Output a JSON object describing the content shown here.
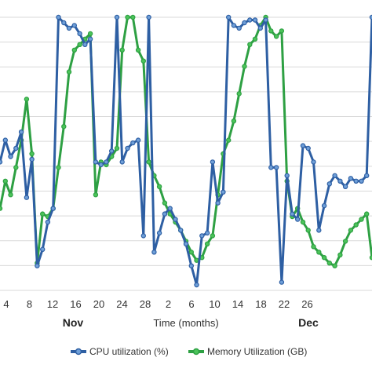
{
  "chart_data": {
    "type": "line",
    "xlabel": "Time (months)",
    "ylabel": "",
    "title": "",
    "x_ticks": [
      "4",
      "8",
      "12",
      "16",
      "20",
      "24",
      "28",
      "2",
      "6",
      "10",
      "14",
      "18",
      "22",
      "26"
    ],
    "month_labels": [
      "Nov",
      "Dec"
    ],
    "ylim": [
      0,
      100
    ],
    "grid": true,
    "legend_position": "bottom",
    "series": [
      {
        "name": "CPU utilization (%)",
        "color": "#2e5fa3",
        "x": [
          0,
          1,
          2,
          3,
          4,
          5,
          6,
          7,
          8,
          9,
          10,
          11,
          12,
          13,
          14,
          15,
          16,
          17,
          18,
          19,
          20,
          21,
          22,
          23,
          24,
          25,
          26,
          27,
          28,
          29,
          30,
          31,
          32,
          33,
          34,
          35,
          36,
          37,
          38,
          39,
          40,
          41,
          42,
          43,
          44,
          45,
          46,
          47,
          48,
          49,
          50,
          51,
          52,
          53,
          54,
          55,
          56,
          57,
          58,
          59,
          60,
          61,
          62,
          63,
          64,
          65,
          66,
          67,
          68,
          69,
          70
        ],
        "values": [
          47,
          55,
          49,
          52,
          58,
          34,
          48,
          9,
          15,
          25,
          30,
          100,
          98,
          96,
          97,
          94,
          90,
          92,
          47,
          46,
          47,
          51,
          100,
          47,
          52,
          54,
          55,
          20,
          100,
          14,
          21,
          28,
          30,
          26,
          22,
          17,
          9,
          2,
          20,
          21,
          47,
          32,
          36,
          100,
          97,
          96,
          98,
          99,
          99,
          96,
          99,
          45,
          45,
          3,
          42,
          28,
          26,
          53,
          52,
          47,
          22,
          31,
          39,
          42,
          40,
          38,
          41,
          40,
          40,
          42,
          100
        ]
      },
      {
        "name": "Memory Utilization (GB)",
        "color": "#2ea043",
        "x": [
          0,
          1,
          2,
          3,
          4,
          5,
          6,
          7,
          8,
          9,
          10,
          11,
          12,
          13,
          14,
          15,
          16,
          17,
          18,
          19,
          20,
          21,
          22,
          23,
          24,
          25,
          26,
          27,
          28,
          29,
          30,
          31,
          32,
          33,
          34,
          35,
          36,
          37,
          38,
          39,
          40,
          41,
          42,
          43,
          44,
          45,
          46,
          47,
          48,
          49,
          50,
          51,
          52,
          53,
          54,
          55,
          56,
          57,
          58,
          59,
          60,
          61,
          62,
          63,
          64,
          65,
          66,
          67,
          68,
          69,
          70
        ],
        "values": [
          30,
          40,
          35,
          45,
          55,
          70,
          50,
          10,
          28,
          27,
          30,
          45,
          60,
          80,
          88,
          90,
          92,
          94,
          35,
          47,
          46,
          49,
          52,
          88,
          100,
          100,
          88,
          84,
          47,
          42,
          38,
          32,
          28,
          25,
          22,
          18,
          14,
          11,
          12,
          17,
          20,
          35,
          50,
          55,
          62,
          72,
          82,
          90,
          92,
          97,
          100,
          95,
          93,
          95,
          40,
          27,
          30,
          25,
          22,
          16,
          14,
          12,
          10,
          9,
          13,
          18,
          22,
          24,
          26,
          28,
          12
        ]
      }
    ]
  }
}
